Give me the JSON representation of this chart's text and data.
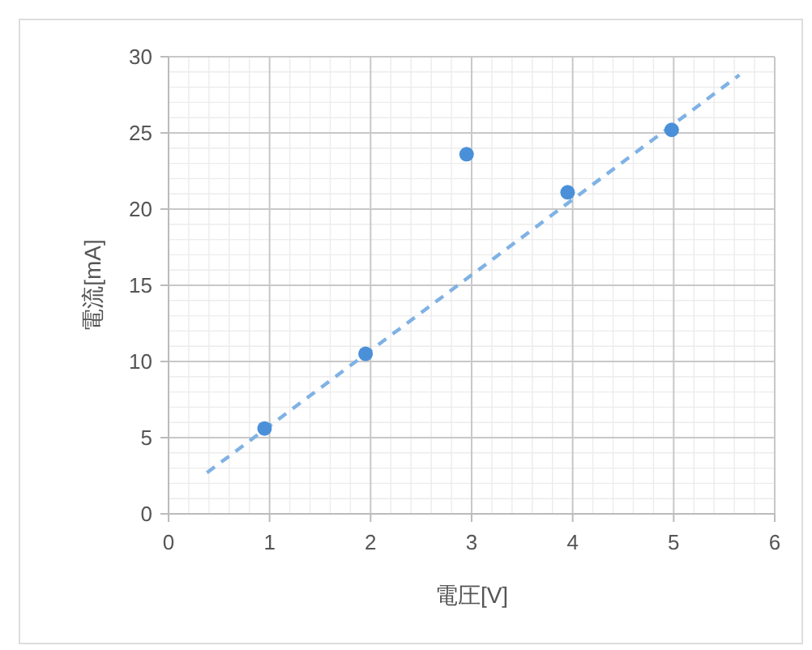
{
  "chart_data": {
    "type": "scatter",
    "xlabel": "電圧[V]",
    "ylabel": "電流[mA]",
    "xlim": [
      0,
      6
    ],
    "ylim": [
      0,
      30
    ],
    "xticks": [
      0,
      1,
      2,
      3,
      4,
      5,
      6
    ],
    "yticks": [
      0,
      5,
      10,
      15,
      20,
      25,
      30
    ],
    "grid": true,
    "series": [
      {
        "color": "#4a90d9",
        "marker": "circle",
        "x": [
          0.95,
          1.95,
          2.95,
          3.95,
          4.98
        ],
        "values": [
          5.6,
          10.5,
          23.6,
          21.1,
          25.2
        ]
      },
      {
        "type": "line",
        "color": "#7fb2e5",
        "line_style": "dashed",
        "marker": "none",
        "x": [
          0.38,
          5.65
        ],
        "values": [
          2.7,
          28.8
        ]
      }
    ]
  }
}
